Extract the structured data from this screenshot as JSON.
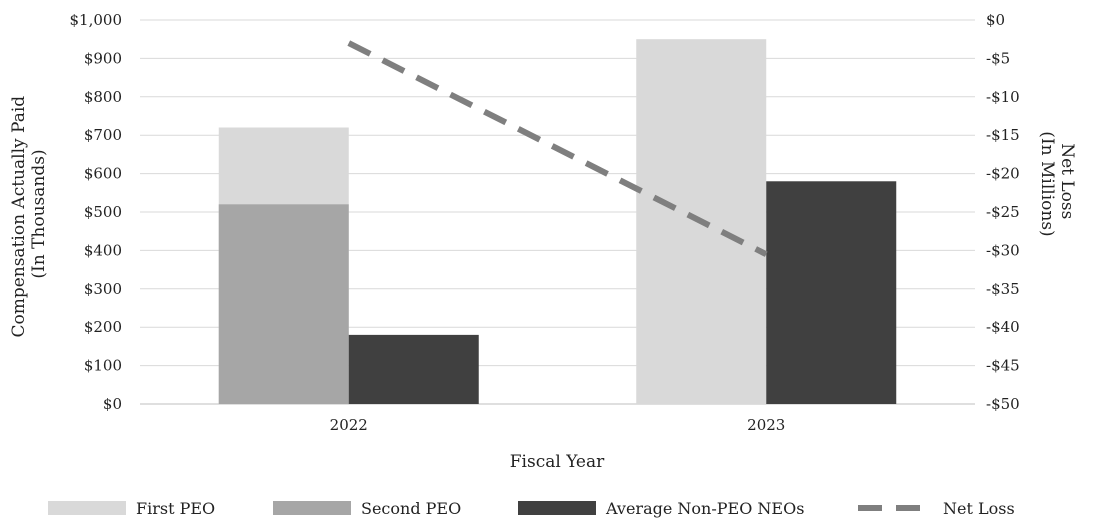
{
  "chart_data": {
    "type": "bar",
    "categories": [
      "2022",
      "2023"
    ],
    "xlabel": "Fiscal Year",
    "ylabel": [
      "Compensation Actually Paid",
      "(In  Thousands)"
    ],
    "y2label": [
      "Net Loss",
      "(In Millions)"
    ],
    "ylim": [
      0,
      1000
    ],
    "y2lim": [
      -50,
      0
    ],
    "yticks": [
      "$0",
      "$100",
      "$200",
      "$300",
      "$400",
      "$500",
      "$600",
      "$700",
      "$800",
      "$900",
      "$1,000"
    ],
    "y2ticks": [
      "$0",
      "-$5",
      "-$10",
      "-$15",
      "-$20",
      "-$25",
      "-$30",
      "-$35",
      "-$40",
      "-$45",
      "-$50"
    ],
    "grid": true,
    "legend_position": "bottom",
    "series": [
      {
        "name": "First PEO",
        "kind": "bar",
        "axis": "left",
        "color": "#d9d9d9",
        "values": [
          720,
          950
        ]
      },
      {
        "name": "Second PEO",
        "kind": "bar",
        "axis": "left",
        "color": "#a6a6a6",
        "values": [
          520,
          0
        ]
      },
      {
        "name": "Average Non-PEO NEOs",
        "kind": "bar",
        "axis": "left",
        "color": "#404040",
        "values": [
          180,
          580
        ]
      },
      {
        "name": "Net Loss",
        "kind": "dashed-line",
        "axis": "right",
        "color": "#7f7f7f",
        "values": [
          -3,
          -30.5
        ]
      }
    ]
  }
}
